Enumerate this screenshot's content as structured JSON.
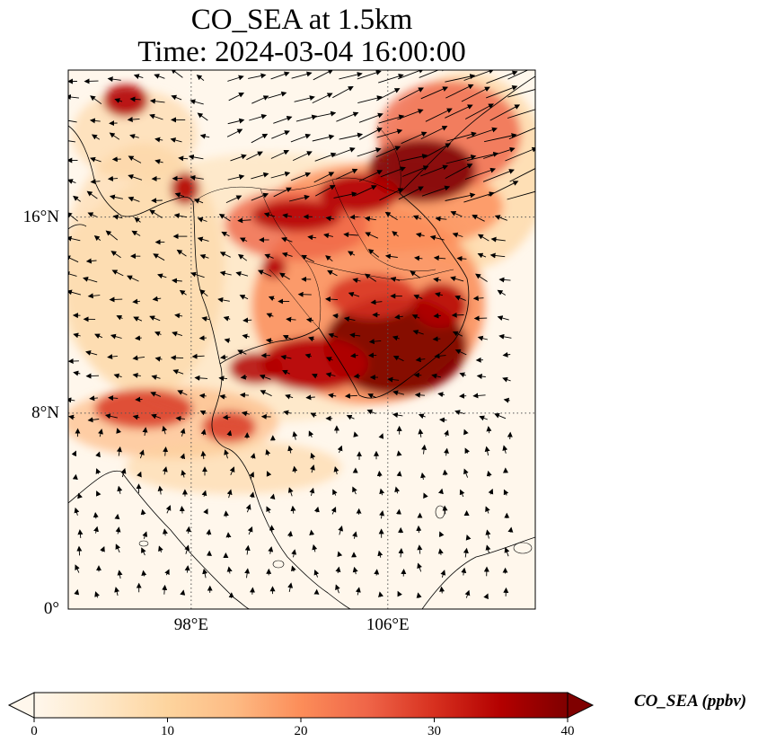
{
  "title": {
    "line1": "CO_SEA at 1.5km",
    "line2": "Time: 2024-03-04 16:00:00"
  },
  "map": {
    "extent": {
      "lon_min": 93,
      "lon_max": 112,
      "lat_min": 0,
      "lat_max": 22
    },
    "gridlines": "dotted",
    "lat_ticks": [
      {
        "value": 0,
        "label": "0°"
      },
      {
        "value": 8,
        "label": "8°N"
      },
      {
        "value": 16,
        "label": "16°N"
      }
    ],
    "lon_ticks": [
      {
        "value": 98,
        "label": "98°E"
      },
      {
        "value": 106,
        "label": "106°E"
      }
    ],
    "field": "CO_SEA concentration, filled colour mesh",
    "vectors": "wind arrows"
  },
  "colorbar": {
    "label": "CO_SEA (ppbv)",
    "min": 0,
    "max": 40,
    "extend": "both",
    "colormap": "OrRd",
    "colors": [
      "#fff7ec",
      "#fee8c8",
      "#fdd49e",
      "#fdbb84",
      "#fc8d59",
      "#ef6548",
      "#d7301f",
      "#b30000",
      "#7f0000"
    ],
    "ticks": [
      {
        "value": 0,
        "label": "0"
      },
      {
        "value": 10,
        "label": "10"
      },
      {
        "value": 20,
        "label": "20"
      },
      {
        "value": 30,
        "label": "30"
      },
      {
        "value": 40,
        "label": "40"
      }
    ]
  }
}
